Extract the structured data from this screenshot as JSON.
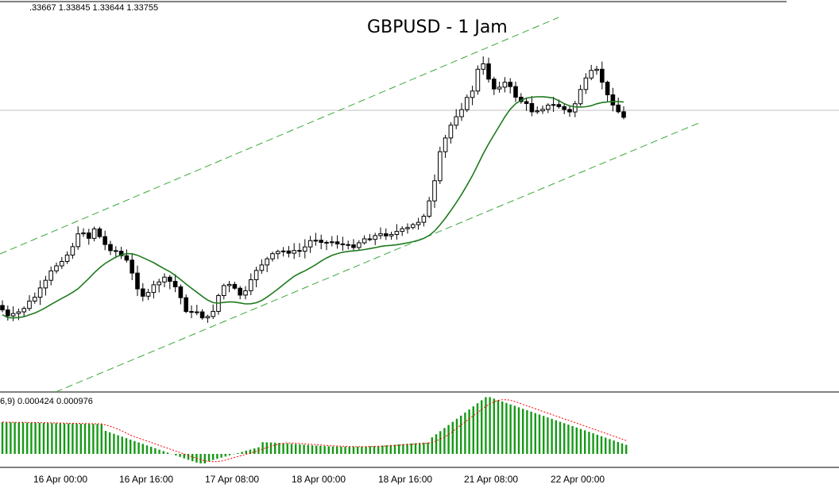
{
  "header": {
    "ohlc_readout": ".33667 1.33845 1.33644 1.33755",
    "macd_readout": "6,9) 0.000424 0.000976"
  },
  "colors": {
    "bull_candle": "#ffffff",
    "bear_candle": "#000000",
    "candle_outline": "#000000",
    "moving_average": "#1e7a1e",
    "channel_lines": "#3aa83a",
    "macd_histogram": "#159a15",
    "signal_line": "#ff0000",
    "current_price_line": "#c0c0c0"
  },
  "chart_data": [
    {
      "type": "candlestick",
      "title": "GBPUSD - 1 Jam",
      "x_tick_labels": [
        "16 Apr 00:00",
        "16 Apr 16:00",
        "17 Apr 08:00",
        "18 Apr 00:00",
        "18 Apr 16:00",
        "21 Apr 08:00",
        "22 Apr 00:00"
      ],
      "indicators": [
        "moving_average",
        "price_channel"
      ],
      "grid": false,
      "y_scale_shown": false
    },
    {
      "type": "bar",
      "subtype": "macd",
      "series": [
        {
          "values": []
        },
        {
          "values": []
        }
      ],
      "grid": false
    }
  ]
}
